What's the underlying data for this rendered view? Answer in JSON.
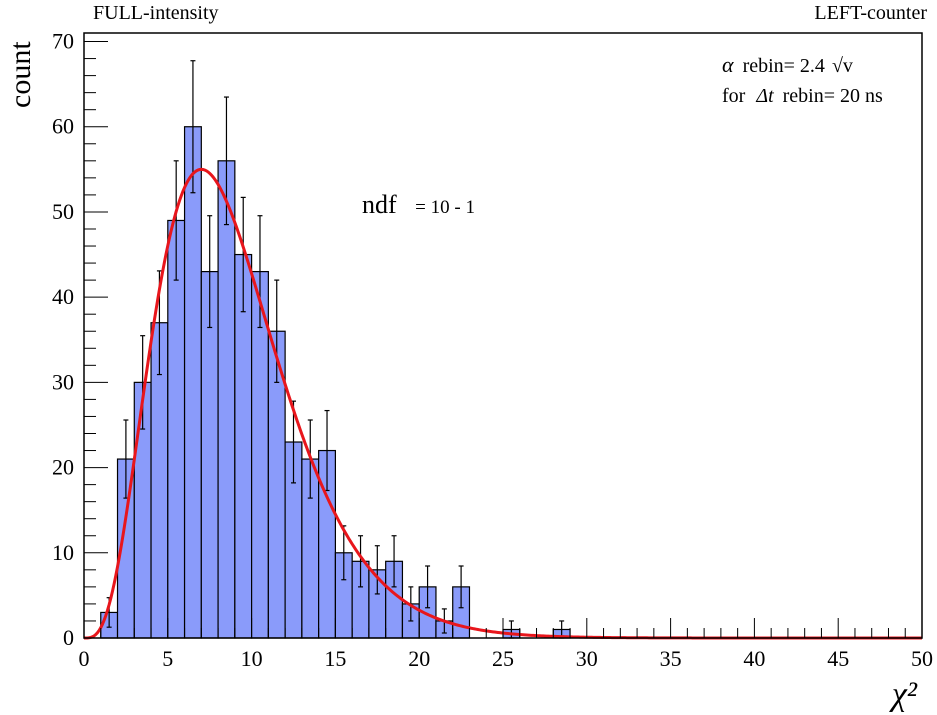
{
  "header": {
    "left_label": "FULL-intensity",
    "right_label": "LEFT-counter"
  },
  "annotations": {
    "alpha_prefix": "α",
    "alpha_text": "rebin= 2.4",
    "alpha_unit": "√v",
    "dt_prefix": "for",
    "dt_symbol": "Δt",
    "dt_text": "rebin= 20 ns",
    "ndf_label": "ndf",
    "ndf_value": "= 10 - 1"
  },
  "colors": {
    "bar_fill": "#8a9bfa",
    "bar_stroke": "#000000",
    "curve": "#e8161c"
  },
  "chart_data": {
    "type": "bar",
    "ylabel": "count",
    "xlabel": "χ²",
    "xlim": [
      0,
      50
    ],
    "ylim": [
      0,
      71
    ],
    "bin_width": 1,
    "x_ticks": [
      0,
      5,
      10,
      15,
      20,
      25,
      30,
      35,
      40,
      45,
      50
    ],
    "y_ticks": [
      0,
      10,
      20,
      30,
      40,
      50,
      60,
      70
    ],
    "bins": [
      {
        "x": 1,
        "value": 3
      },
      {
        "x": 2,
        "value": 21
      },
      {
        "x": 3,
        "value": 30
      },
      {
        "x": 4,
        "value": 37
      },
      {
        "x": 5,
        "value": 49
      },
      {
        "x": 6,
        "value": 60
      },
      {
        "x": 7,
        "value": 43
      },
      {
        "x": 8,
        "value": 56
      },
      {
        "x": 9,
        "value": 45
      },
      {
        "x": 10,
        "value": 43
      },
      {
        "x": 11,
        "value": 36
      },
      {
        "x": 12,
        "value": 23
      },
      {
        "x": 13,
        "value": 21
      },
      {
        "x": 14,
        "value": 22
      },
      {
        "x": 15,
        "value": 10
      },
      {
        "x": 16,
        "value": 9
      },
      {
        "x": 17,
        "value": 8
      },
      {
        "x": 18,
        "value": 9
      },
      {
        "x": 19,
        "value": 4
      },
      {
        "x": 20,
        "value": 6
      },
      {
        "x": 21,
        "value": 2
      },
      {
        "x": 22,
        "value": 6
      },
      {
        "x": 25,
        "value": 1
      },
      {
        "x": 28,
        "value": 1
      }
    ],
    "fit_curve": {
      "type": "chi2",
      "ndf": 9,
      "peak_value": 55
    },
    "grid": false,
    "legend": "none"
  }
}
